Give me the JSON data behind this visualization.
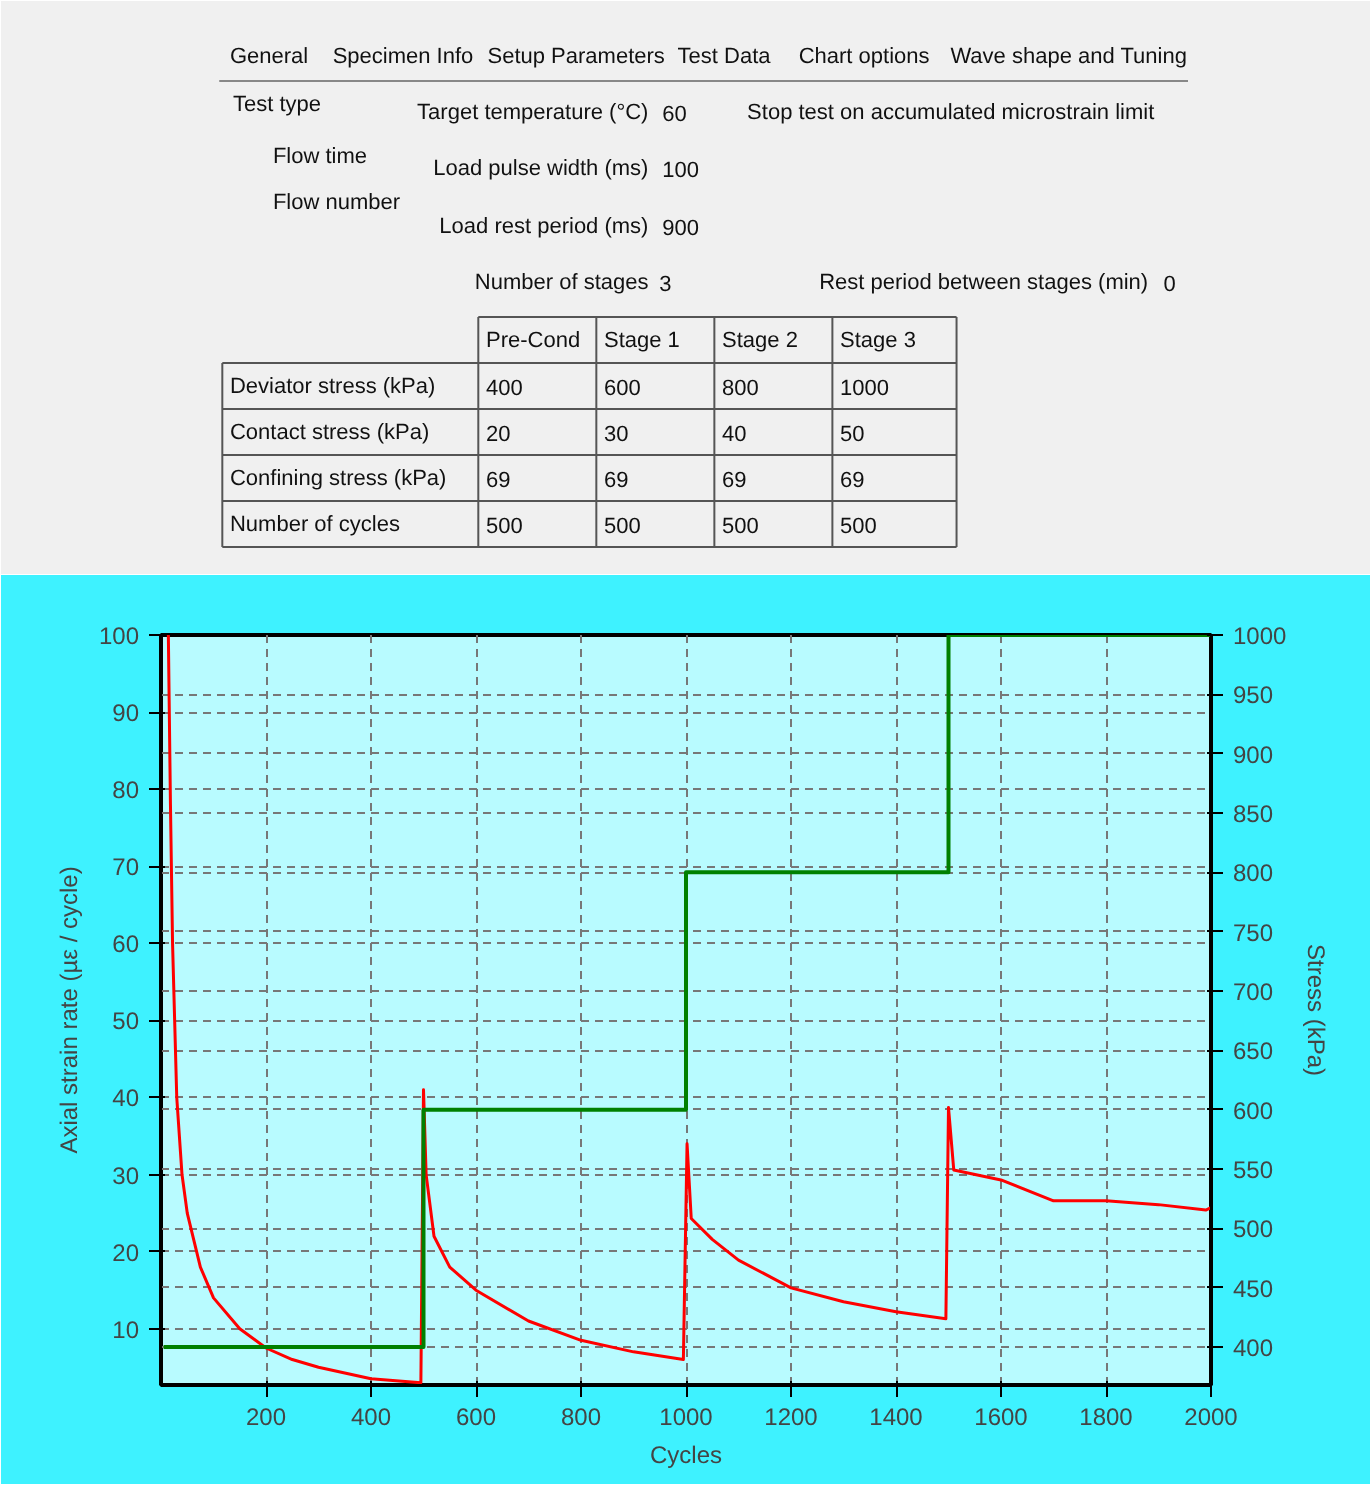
{
  "chart_data": {
    "type": "line",
    "xlabel": "Cycles",
    "ylabel": "Axial strain rate (µε / cycle)",
    "y2label": "Stress (kPa)",
    "xlim": [
      0,
      2000
    ],
    "xticks": [
      200,
      400,
      600,
      800,
      1000,
      1200,
      1400,
      1600,
      1800,
      2000
    ],
    "ylim": [
      2.7,
      100
    ],
    "yticks": [
      10,
      20,
      30,
      40,
      50,
      60,
      70,
      80,
      90,
      100
    ],
    "y2lim": [
      368,
      1000
    ],
    "y2ticks": [
      400,
      450,
      500,
      550,
      600,
      650,
      700,
      750,
      800,
      850,
      900,
      950,
      1000
    ],
    "grid": true,
    "series": [
      {
        "color": "#ff0000",
        "x": [
          14,
          18,
          22,
          26,
          30,
          40,
          50,
          75,
          100,
          150,
          200,
          250,
          300,
          400,
          495,
          500,
          505,
          520,
          550,
          600,
          700,
          800,
          900,
          995,
          1002,
          1010,
          1050,
          1100,
          1200,
          1300,
          1400,
          1495,
          1500,
          1510,
          1600,
          1700,
          1800,
          1900,
          1990,
          2000
        ],
        "values": [
          100,
          78,
          60,
          50,
          40,
          30,
          25,
          18,
          14,
          10,
          7.5,
          6,
          5,
          3.5,
          3,
          41,
          30,
          22,
          18,
          15,
          11,
          8.5,
          7,
          6,
          34,
          24.3,
          21.6,
          18.9,
          15.3,
          13.5,
          12.2,
          11.3,
          38.7,
          30.6,
          29.3,
          26.6,
          26.6,
          26.1,
          25.4,
          25.7
        ]
      },
      {
        "type": "step",
        "axis": "y2",
        "color": "#008000",
        "x": [
          5,
          500,
          1000,
          1500,
          2000
        ],
        "values": [
          400,
          600,
          800,
          1000,
          1000
        ]
      }
    ],
    "annotations": [
      "General",
      "Specimen Info",
      "Setup Parameters",
      "Test Data",
      "Chart options",
      "Wave shape and Tuning",
      "Test type",
      "Flow time",
      "Flow number",
      "Target temperature (°C)",
      "60",
      "Load pulse width (ms)",
      "100",
      "Load rest period (ms)",
      "900",
      "Number of stages",
      "3",
      "Stop test on accumulated microstrain limit",
      "Rest period between stages (min)",
      "0",
      "Pre-Cond",
      "Stage 1",
      "Stage 2",
      "Stage 3",
      "Deviator stress (kPa)",
      "400",
      "600",
      "800",
      "1000",
      "Contact stress (kPa)",
      "20",
      "30",
      "40",
      "50",
      "Confining stress (kPa)",
      "69",
      "69",
      "69",
      "69",
      "Number of cycles",
      "500",
      "500",
      "500",
      "500"
    ]
  }
}
